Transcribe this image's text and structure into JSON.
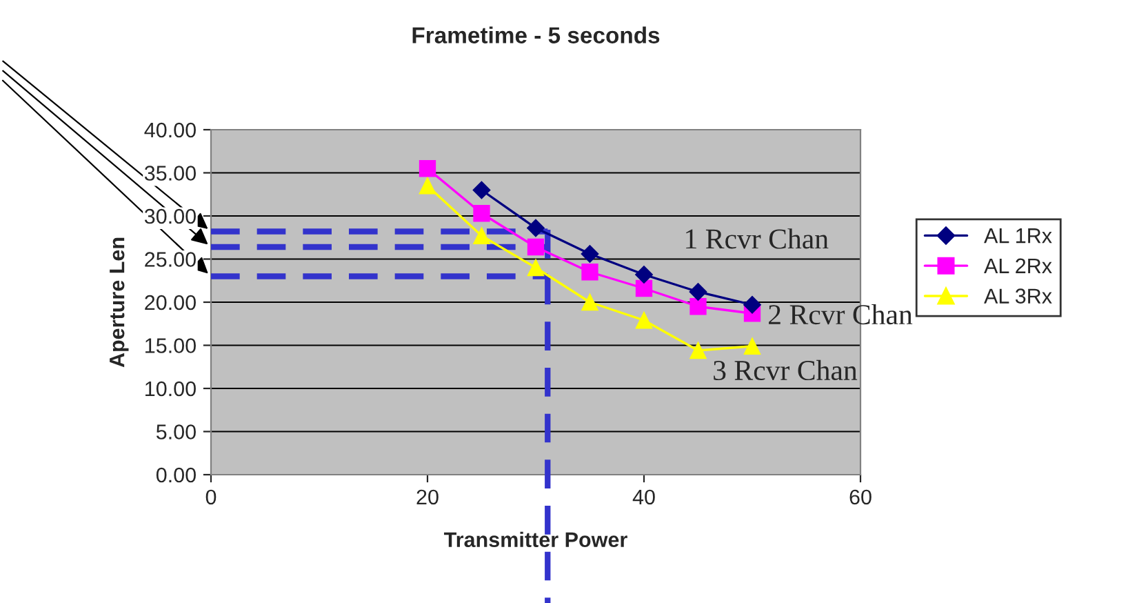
{
  "chart_data": {
    "type": "line",
    "title": "Frametime - 5 seconds",
    "xlabel": "Transmitter Power",
    "ylabel": "Aperture Len",
    "x": [
      20,
      25,
      30,
      35,
      40,
      45,
      50
    ],
    "series": [
      {
        "name": "AL 1Rx",
        "color": "#000080",
        "marker": "diamond",
        "values": [
          null,
          33.0,
          28.6,
          25.6,
          23.2,
          21.2,
          19.7
        ]
      },
      {
        "name": "AL 2Rx",
        "color": "#ff00ff",
        "marker": "square",
        "values": [
          35.5,
          30.3,
          26.4,
          23.5,
          21.6,
          19.5,
          18.7
        ]
      },
      {
        "name": "AL 3Rx",
        "color": "#ffff00",
        "marker": "triangle",
        "values": [
          33.5,
          27.7,
          24.0,
          20.0,
          17.9,
          14.4,
          14.9
        ]
      }
    ],
    "xlim": [
      0,
      60
    ],
    "xticks": [
      0,
      20,
      40,
      60
    ],
    "ylim": [
      0,
      40
    ],
    "yticks": [
      {
        "value": 0,
        "label": "0.00"
      },
      {
        "value": 5,
        "label": "5.00"
      },
      {
        "value": 10,
        "label": "10.00"
      },
      {
        "value": 15,
        "label": "15.00"
      },
      {
        "value": 20,
        "label": "20.00"
      },
      {
        "value": 25,
        "label": "25.00"
      },
      {
        "value": 30,
        "label": "30.00"
      },
      {
        "value": 35,
        "label": "35.00"
      },
      {
        "value": 40,
        "label": "40.00"
      }
    ],
    "grid": "y",
    "legend": "right",
    "ref_lines": [
      {
        "axis": "y",
        "value": 28.2,
        "color": "#3333cc",
        "line_style": "dashed"
      },
      {
        "axis": "y",
        "value": 26.4,
        "color": "#3333cc",
        "line_style": "dashed"
      },
      {
        "axis": "y",
        "value": 23.0,
        "color": "#3333cc",
        "line_style": "dashed"
      },
      {
        "axis": "x",
        "value": 31.1,
        "color": "#3333cc",
        "line_style": "dashed"
      }
    ],
    "annotations": [
      "1 Rcvr Chan",
      "2 Rcvr Chan",
      "3 Rcvr Chan"
    ]
  }
}
